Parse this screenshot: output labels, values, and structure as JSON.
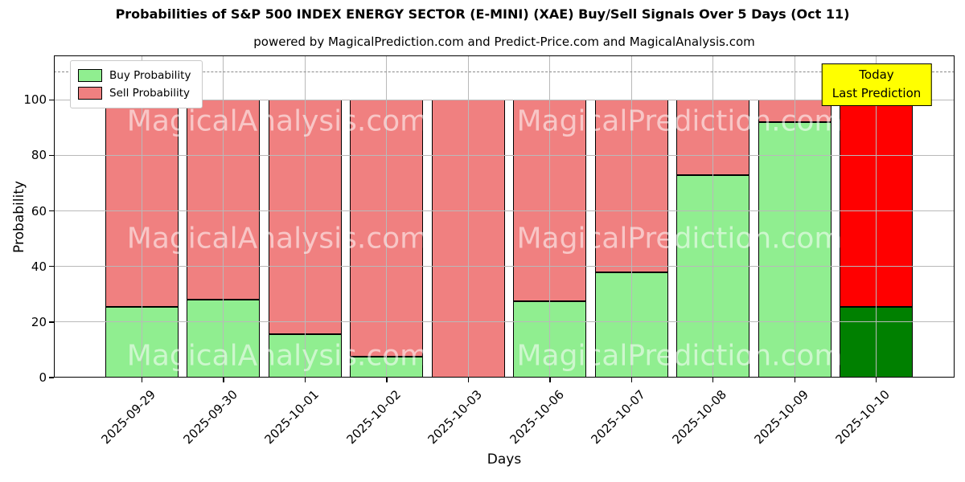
{
  "chart_data": {
    "type": "bar",
    "stacked": true,
    "title": "Probabilities of S&P 500 INDEX ENERGY SECTOR (E-MINI) (XAE) Buy/Sell Signals Over 5 Days (Oct 11)",
    "subtitle": "powered by MagicalPrediction.com and Predict-Price.com and MagicalAnalysis.com",
    "xlabel": "Days",
    "ylabel": "Probability",
    "categories": [
      "2025-09-29",
      "2025-09-30",
      "2025-10-01",
      "2025-10-02",
      "2025-10-03",
      "2025-10-06",
      "2025-10-07",
      "2025-10-08",
      "2025-10-09",
      "2025-10-10"
    ],
    "series": [
      {
        "name": "Buy Probability",
        "values": [
          25.5,
          28,
          15.5,
          7.5,
          0,
          27.5,
          38,
          73,
          92,
          25.5
        ],
        "color": "#90ee90",
        "today_color": "#008000"
      },
      {
        "name": "Sell Probability",
        "values": [
          74.5,
          72,
          84.5,
          92.5,
          100,
          72.5,
          62,
          27,
          8,
          74.5
        ],
        "color": "#f08080",
        "today_color": "#ff0000"
      }
    ],
    "ylim": [
      0,
      116
    ],
    "yticks": [
      0,
      20,
      40,
      60,
      80,
      100
    ],
    "dashed_line_y": 110,
    "grid": true,
    "legend_position": "upper-left",
    "annotation": {
      "line1": "Today",
      "line2": "Last Prediction",
      "bg_color": "#ffff00"
    },
    "watermarks": [
      "MagicalAnalysis.com",
      "MagicalPrediction.com"
    ],
    "colors": {
      "grid": "#b9b9b9",
      "dashed_line": "#8a8a8a",
      "bar_edge": "#000000",
      "annotation_border": "#000000"
    }
  }
}
